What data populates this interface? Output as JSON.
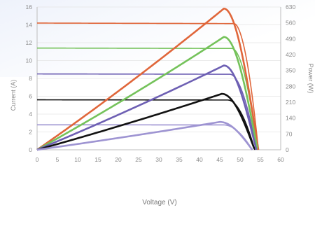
{
  "chart_data": {
    "type": "line",
    "xlabel": "Voltage (V)",
    "ylabel_left": "Current (A)",
    "ylabel_right": "Power (W)",
    "xlim": [
      0,
      60
    ],
    "ylim_left": [
      0,
      16
    ],
    "ylim_right": [
      0,
      630
    ],
    "x_ticks": [
      "0",
      "5",
      "10",
      "15",
      "20",
      "25",
      "30",
      "35",
      "40",
      "45",
      "50",
      "55",
      "60"
    ],
    "y_left_ticks": [
      "0",
      "2",
      "4",
      "6",
      "8",
      "10",
      "12",
      "14",
      "16"
    ],
    "y_right_ticks": [
      "0",
      "70",
      "140",
      "210",
      "280",
      "350",
      "420",
      "490",
      "560",
      "630"
    ],
    "grid": "horizontal",
    "series": [
      {
        "kind": "current",
        "color": "#e0663a",
        "isc": 14.2,
        "voc": 54.5,
        "vk": 48.5,
        "a": 1.9
      },
      {
        "kind": "current",
        "color": "#74c25a",
        "isc": 11.4,
        "voc": 54.3,
        "vk": 48.0,
        "a": 1.9
      },
      {
        "kind": "current",
        "color": "#6d5fb3",
        "isc": 8.5,
        "voc": 54.0,
        "vk": 47.5,
        "a": 1.9
      },
      {
        "kind": "current",
        "color": "#111111",
        "isc": 5.6,
        "voc": 53.6,
        "vk": 47.0,
        "a": 1.9
      },
      {
        "kind": "current",
        "color": "#9e94d2",
        "isc": 2.8,
        "voc": 53.0,
        "vk": 46.0,
        "a": 1.9
      },
      {
        "kind": "power",
        "color": "#e0663a",
        "peak_v": 46,
        "peak_w": 623,
        "voc": 54.5
      },
      {
        "kind": "power",
        "color": "#74c25a",
        "peak_v": 46,
        "peak_w": 498,
        "voc": 54.3
      },
      {
        "kind": "power",
        "color": "#6d5fb3",
        "peak_v": 46,
        "peak_w": 372,
        "voc": 54.0
      },
      {
        "kind": "power",
        "color": "#111111",
        "peak_v": 45.5,
        "peak_w": 247,
        "voc": 53.6
      },
      {
        "kind": "power",
        "color": "#9e94d2",
        "peak_v": 45,
        "peak_w": 123,
        "voc": 53.0
      }
    ]
  }
}
